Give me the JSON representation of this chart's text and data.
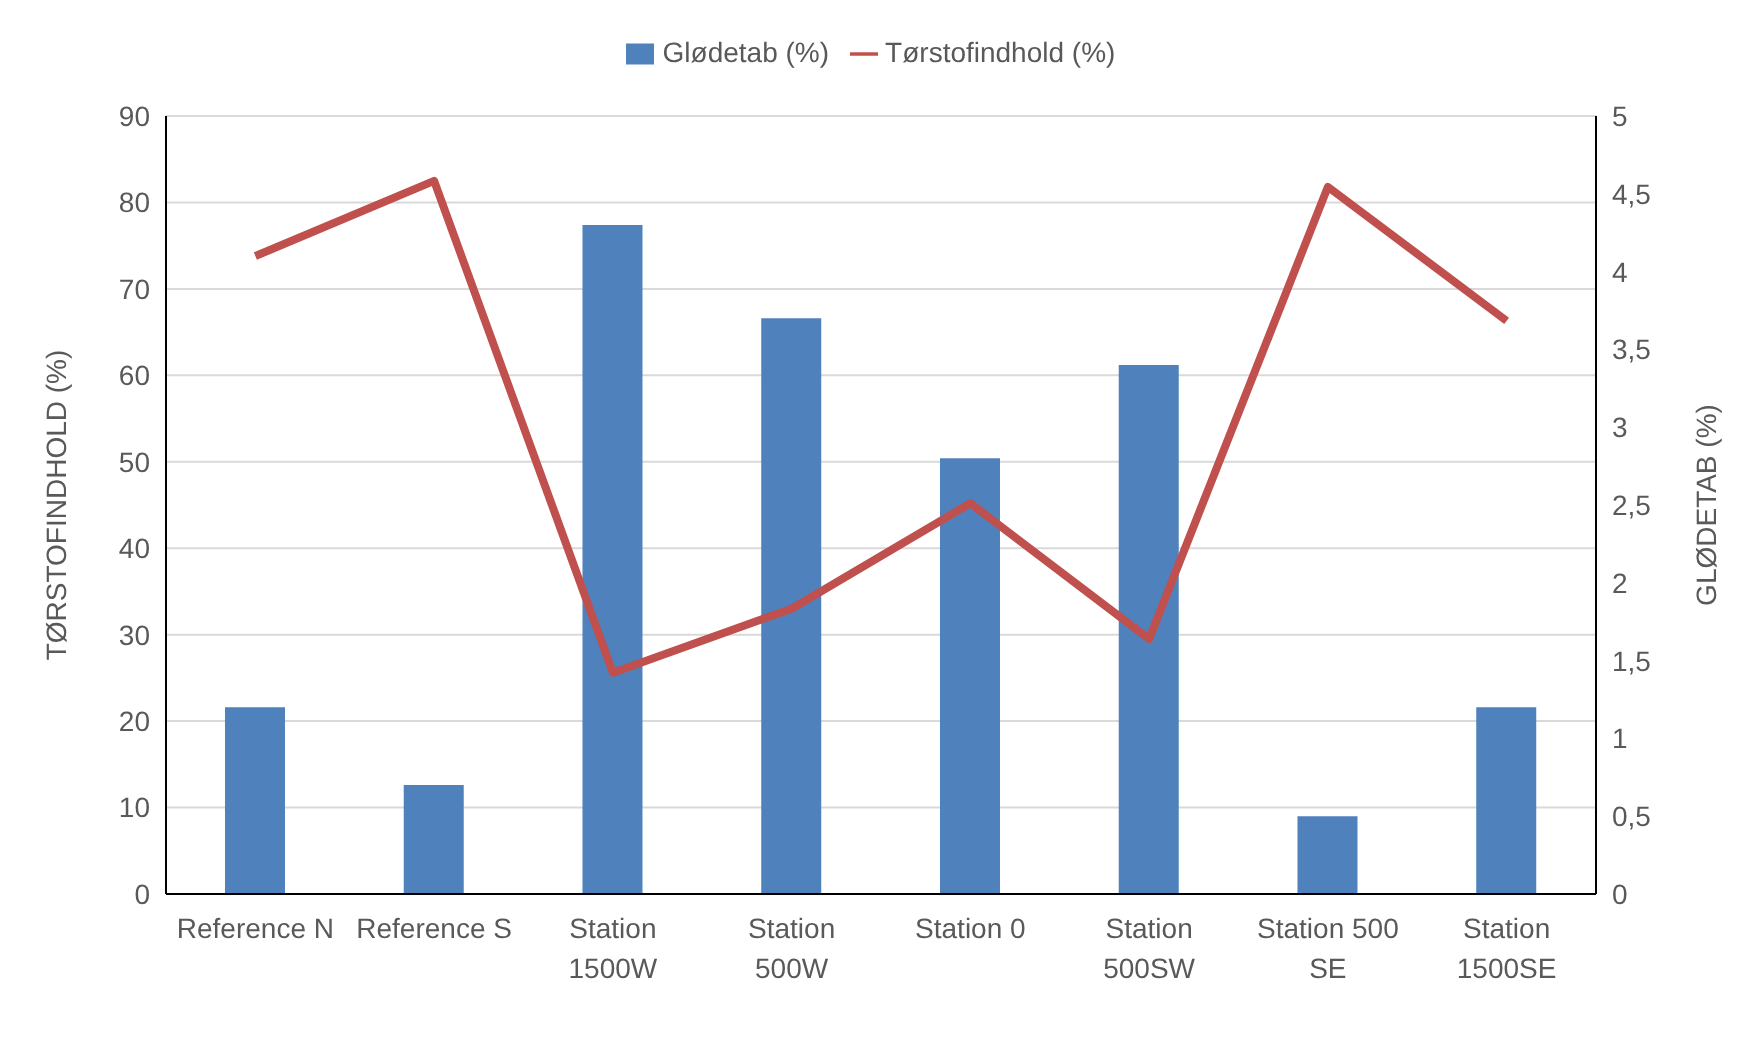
{
  "chart_data": {
    "type": "bar",
    "categories": [
      "Reference N",
      "Reference S",
      "Station 1500W",
      "Station 500W",
      "Station 0",
      "Station 500SW",
      "Station 500 SE",
      "Station 1500SE"
    ],
    "series": [
      {
        "name": "Glødetab (%)",
        "axis": "y2",
        "color": "#4f81bd",
        "values": [
          1.2,
          0.7,
          4.3,
          3.7,
          2.8,
          3.4,
          0.5,
          1.2
        ]
      },
      {
        "name": "Tørstofindhold (%)",
        "type": "line",
        "color": "#c0504d",
        "values": [
          73.8,
          82.5,
          25.6,
          33.0,
          45.2,
          29.5,
          81.8,
          66.3
        ]
      }
    ],
    "ylabel": "TØRSTOFINDHOLD (%)",
    "y2label": "GLØDETAB (%)",
    "ylim": [
      0,
      90
    ],
    "yticks": [
      0,
      10,
      20,
      30,
      40,
      50,
      60,
      70,
      80,
      90
    ],
    "y2lim": [
      0,
      5
    ],
    "y2ticks": [
      0,
      {
        "value": 0.5,
        "label": "0,5"
      },
      1,
      {
        "value": 1.5,
        "label": "1,5"
      },
      2,
      {
        "value": 2.5,
        "label": "2,5"
      },
      3,
      {
        "value": 3.5,
        "label": "3,5"
      },
      4,
      {
        "value": 4.5,
        "label": "4,5"
      },
      5
    ],
    "grid": "y",
    "legend": "top",
    "marker": "none"
  }
}
